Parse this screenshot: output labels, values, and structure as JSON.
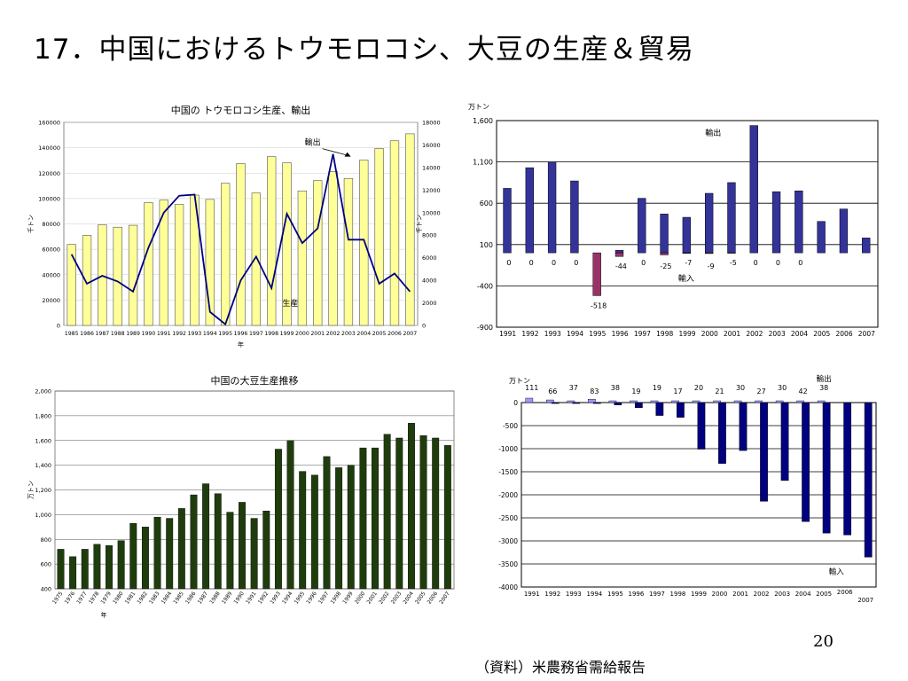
{
  "slide": {
    "title": "17．中国におけるトウモロコシ、大豆の生産＆貿易",
    "page_number": "20",
    "source": "（資料）米農務省需給報告"
  },
  "chart_data": [
    {
      "id": "corn_production_export",
      "type": "bar",
      "title": "中国の トウモロコシ生産、輸出",
      "xlabel": "年",
      "ylabel": "千トン",
      "y2label": "千トン",
      "categories": [
        "1985",
        "1986",
        "1987",
        "1988",
        "1989",
        "1990",
        "1991",
        "1992",
        "1993",
        "1994",
        "1995",
        "1996",
        "1997",
        "1998",
        "1999",
        "2000",
        "2001",
        "2002",
        "2003",
        "2004",
        "2005",
        "2006",
        "2007"
      ],
      "ylim": [
        0,
        160000
      ],
      "y2lim": [
        0,
        18000
      ],
      "yticks": [
        0,
        20000,
        40000,
        60000,
        80000,
        100000,
        120000,
        140000,
        160000
      ],
      "y2ticks": [
        0,
        2000,
        4000,
        6000,
        8000,
        10000,
        12000,
        14000,
        16000,
        18000
      ],
      "series": [
        {
          "name": "生産",
          "kind": "bar",
          "axis": "left",
          "color": "#ffff99",
          "values": [
            63800,
            70900,
            79200,
            77400,
            78900,
            96800,
            98800,
            95400,
            102700,
            99300,
            112000,
            127500,
            104300,
            133000,
            128100,
            106000,
            114100,
            121300,
            115800,
            130300,
            139400,
            145500,
            151000
          ]
        },
        {
          "name": "輸出",
          "kind": "line",
          "axis": "right",
          "color": "#000080",
          "values": [
            6300,
            3700,
            4400,
            3900,
            3000,
            6900,
            10000,
            11500,
            11600,
            1200,
            100,
            4000,
            6100,
            3300,
            9900,
            7300,
            8600,
            15200,
            7600,
            7600,
            3700,
            4600,
            3000
          ]
        }
      ],
      "annotations": [
        {
          "text": "輸出"
        },
        {
          "text": "生産"
        }
      ]
    },
    {
      "id": "corn_net_trade",
      "type": "bar",
      "title": "",
      "ylabel": "万トン",
      "categories": [
        "1991",
        "1992",
        "1993",
        "1994",
        "1995",
        "1996",
        "1997",
        "1998",
        "1999",
        "2000",
        "2001",
        "2002",
        "2003",
        "2004",
        "2005",
        "2006",
        "2007"
      ],
      "ylim": [
        -900,
        1600
      ],
      "yticks": [
        -900,
        -400,
        100,
        600,
        1100,
        1600
      ],
      "ytick_labels": [
        "-900",
        "-400",
        "100",
        "600",
        "1,100",
        "1,600"
      ],
      "series": [
        {
          "name": "輸出",
          "values": [
            780,
            1030,
            1100,
            870,
            0,
            30,
            660,
            470,
            430,
            720,
            850,
            1540,
            740,
            750,
            380,
            530,
            180
          ],
          "color": "#333399"
        },
        {
          "name": "輸入",
          "values": [
            0,
            0,
            0,
            0,
            -518,
            -44,
            0,
            -25,
            -7,
            -9,
            -5,
            0,
            0,
            0,
            0,
            0,
            0
          ],
          "color": "#993366"
        }
      ],
      "import_labels": [
        "0",
        "0",
        "0",
        "0",
        "-518",
        "-44",
        "0",
        "-25",
        "-7",
        "-9",
        "-5",
        "0",
        "0",
        "0",
        "",
        "",
        ""
      ],
      "annotations": [
        {
          "text": "輸出"
        },
        {
          "text": "輸入"
        }
      ]
    },
    {
      "id": "soybean_production",
      "type": "bar",
      "title": "中国の大豆生産推移",
      "xlabel": "年",
      "ylabel": "万トン",
      "categories": [
        "1975",
        "1976",
        "1977",
        "1978",
        "1979",
        "1980",
        "1981",
        "1982",
        "1983",
        "1984",
        "1985",
        "1986",
        "1987",
        "1988",
        "1989",
        "1990",
        "1991",
        "1992",
        "1993",
        "1994",
        "1995",
        "1996",
        "1997",
        "1998",
        "1999",
        "2000",
        "2001",
        "2002",
        "2003",
        "2004",
        "2005",
        "2006",
        "2007"
      ],
      "ylim": [
        400,
        2000
      ],
      "yticks": [
        400,
        600,
        800,
        1000,
        1200,
        1400,
        1600,
        1800,
        2000
      ],
      "ytick_labels": [
        "400",
        "600",
        "800",
        "1,000",
        "1,200",
        "1,400",
        "1,600",
        "1,800",
        "2,000"
      ],
      "series": [
        {
          "name": "生産",
          "color": "#1f3d0c",
          "values": [
            720,
            660,
            720,
            760,
            750,
            790,
            930,
            900,
            980,
            970,
            1050,
            1160,
            1250,
            1170,
            1020,
            1100,
            970,
            1030,
            1530,
            1600,
            1350,
            1320,
            1470,
            1380,
            1400,
            1540,
            1540,
            1650,
            1620,
            1740,
            1640,
            1620,
            1560
          ]
        }
      ]
    },
    {
      "id": "soybean_net_trade",
      "type": "bar",
      "title": "",
      "ylabel": "万トン",
      "categories": [
        "1991",
        "1992",
        "1993",
        "1994",
        "1995",
        "1996",
        "1997",
        "1998",
        "1999",
        "2000",
        "2001",
        "2002",
        "2003",
        "2004",
        "2005",
        "2006",
        "2007"
      ],
      "ylim": [
        -4000,
        0
      ],
      "yticks": [
        -4000,
        -3500,
        -3000,
        -2500,
        -2000,
        -1500,
        -1000,
        -500,
        0
      ],
      "series": [
        {
          "name": "輸出",
          "color": "#9999ff",
          "values": [
            111,
            66,
            37,
            83,
            38,
            19,
            19,
            17,
            20,
            21,
            30,
            27,
            30,
            42,
            38,
            0,
            0
          ]
        },
        {
          "name": "輸入",
          "color": "#000080",
          "values": [
            0,
            -20,
            -20,
            -20,
            -50,
            -110,
            -280,
            -320,
            -1010,
            -1320,
            -1040,
            -2140,
            -1690,
            -2580,
            -2830,
            -2870,
            -3350
          ]
        }
      ],
      "export_labels": [
        "111",
        "66",
        "37",
        "83",
        "38",
        "19",
        "19",
        "17",
        "20",
        "21",
        "30",
        "27",
        "30",
        "42",
        "38",
        "",
        ""
      ],
      "annotations": [
        {
          "text": "輸出"
        },
        {
          "text": "輸入"
        }
      ]
    }
  ]
}
